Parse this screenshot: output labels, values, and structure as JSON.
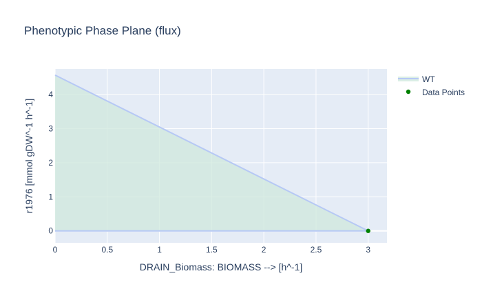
{
  "chart_data": {
    "type": "area",
    "title": "Phenotypic Phase Plane (flux)",
    "xlabel": "DRAIN_Biomass: BIOMASS -->  [h^-1]",
    "ylabel": "r1976  [mmol gDW^-1 h^-1]",
    "xlim": [
      0,
      3.18
    ],
    "ylim": [
      -0.35,
      4.75
    ],
    "x_ticks": [
      0,
      0.5,
      1,
      1.5,
      2,
      2.5,
      3
    ],
    "x_tick_labels": [
      "0",
      "0.5",
      "1",
      "1.5",
      "2",
      "2.5",
      "3"
    ],
    "y_ticks": [
      0,
      1,
      2,
      3,
      4
    ],
    "y_tick_labels": [
      "0",
      "1",
      "2",
      "3",
      "4"
    ],
    "grid": true,
    "legend_position": "right",
    "plot_background": "#e5ecf6",
    "series": [
      {
        "name": "WT",
        "kind": "filled-envelope",
        "color": "#b6c8f5",
        "fill": "#cfe8dc",
        "upper": {
          "x": [
            0,
            3.0
          ],
          "y": [
            4.57,
            0
          ]
        },
        "lower": {
          "x": [
            0,
            3.0
          ],
          "y": [
            0,
            0
          ]
        }
      },
      {
        "name": "Data Points",
        "kind": "scatter",
        "color": "#008000",
        "x": [
          3.0
        ],
        "y": [
          0
        ]
      }
    ]
  }
}
